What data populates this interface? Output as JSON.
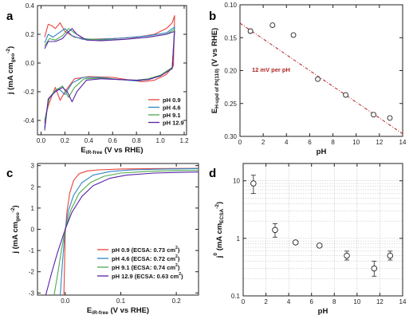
{
  "chart_data": [
    {
      "panel": "a",
      "type": "line",
      "xlabel": {
        "main": "E",
        "sub": "iR-free",
        "rest": " (V vs RHE)"
      },
      "ylabel": {
        "pre": "j (mA cm",
        "sub": "geo",
        "sup": "-2",
        "post": ")"
      },
      "xlim": [
        -0.03,
        1.22
      ],
      "ylim": [
        -0.5,
        0.4
      ],
      "xticks": [
        0.0,
        0.2,
        0.4,
        0.6,
        0.8,
        1.0,
        1.2
      ],
      "xtick_labels": [
        "0.0",
        "0.2",
        "0.4",
        "0.6",
        "0.8",
        "1.0",
        "1.2"
      ],
      "yticks": [
        -0.4,
        -0.2,
        0.0,
        0.2,
        0.4
      ],
      "ytick_labels": [
        "-0.4",
        "-0.2",
        "0.0",
        "0.2",
        "0.4"
      ],
      "legend": {
        "placement": "bottom-right"
      },
      "series": [
        {
          "name": "pH  0.9",
          "color": "#e8443a",
          "anodic": [
            [
              0.03,
              0.18
            ],
            [
              0.06,
              0.27
            ],
            [
              0.09,
              0.26
            ],
            [
              0.12,
              0.24
            ],
            [
              0.16,
              0.28
            ],
            [
              0.2,
              0.22
            ],
            [
              0.28,
              0.18
            ],
            [
              0.4,
              0.165
            ],
            [
              0.6,
              0.17
            ],
            [
              0.8,
              0.18
            ],
            [
              0.95,
              0.2
            ],
            [
              1.05,
              0.24
            ],
            [
              1.1,
              0.28
            ],
            [
              1.12,
              0.33
            ]
          ],
          "cathodic": [
            [
              1.12,
              0.33
            ],
            [
              1.11,
              -0.02
            ],
            [
              1.05,
              -0.08
            ],
            [
              0.95,
              -0.12
            ],
            [
              0.85,
              -0.13
            ],
            [
              0.75,
              -0.12
            ],
            [
              0.6,
              -0.1
            ],
            [
              0.4,
              -0.095
            ],
            [
              0.28,
              -0.11
            ],
            [
              0.2,
              -0.2
            ],
            [
              0.16,
              -0.26
            ],
            [
              0.12,
              -0.17
            ],
            [
              0.09,
              -0.23
            ],
            [
              0.06,
              -0.3
            ],
            [
              0.04,
              -0.36
            ],
            [
              0.03,
              -0.42
            ]
          ]
        },
        {
          "name": "pH  4.6",
          "color": "#2f84c4",
          "anodic": [
            [
              0.03,
              0.14
            ],
            [
              0.06,
              0.2
            ],
            [
              0.1,
              0.18
            ],
            [
              0.15,
              0.21
            ],
            [
              0.2,
              0.24
            ],
            [
              0.26,
              0.19
            ],
            [
              0.35,
              0.165
            ],
            [
              0.5,
              0.165
            ],
            [
              0.7,
              0.175
            ],
            [
              0.9,
              0.19
            ],
            [
              1.05,
              0.21
            ],
            [
              1.12,
              0.25
            ]
          ],
          "cathodic": [
            [
              1.12,
              0.25
            ],
            [
              1.1,
              -0.03
            ],
            [
              1.0,
              -0.09
            ],
            [
              0.9,
              -0.115
            ],
            [
              0.8,
              -0.125
            ],
            [
              0.65,
              -0.115
            ],
            [
              0.5,
              -0.1
            ],
            [
              0.35,
              -0.1
            ],
            [
              0.26,
              -0.14
            ],
            [
              0.2,
              -0.22
            ],
            [
              0.15,
              -0.18
            ],
            [
              0.1,
              -0.21
            ],
            [
              0.06,
              -0.26
            ],
            [
              0.03,
              -0.45
            ]
          ]
        },
        {
          "name": "pH  9.1",
          "color": "#4dab4a",
          "anodic": [
            [
              0.03,
              0.12
            ],
            [
              0.07,
              0.17
            ],
            [
              0.12,
              0.16
            ],
            [
              0.18,
              0.19
            ],
            [
              0.23,
              0.24
            ],
            [
              0.28,
              0.21
            ],
            [
              0.36,
              0.17
            ],
            [
              0.5,
              0.16
            ],
            [
              0.7,
              0.165
            ],
            [
              0.9,
              0.18
            ],
            [
              1.05,
              0.2
            ],
            [
              1.12,
              0.235
            ]
          ],
          "cathodic": [
            [
              1.12,
              0.235
            ],
            [
              1.1,
              -0.03
            ],
            [
              1.0,
              -0.085
            ],
            [
              0.9,
              -0.11
            ],
            [
              0.8,
              -0.12
            ],
            [
              0.65,
              -0.115
            ],
            [
              0.5,
              -0.105
            ],
            [
              0.36,
              -0.11
            ],
            [
              0.28,
              -0.17
            ],
            [
              0.23,
              -0.24
            ],
            [
              0.18,
              -0.16
            ],
            [
              0.12,
              -0.19
            ],
            [
              0.07,
              -0.24
            ],
            [
              0.03,
              -0.4
            ]
          ]
        },
        {
          "name": "pH 12.9",
          "color": "#5a1fa8",
          "anodic": [
            [
              0.03,
              0.1
            ],
            [
              0.06,
              0.15
            ],
            [
              0.12,
              0.15
            ],
            [
              0.18,
              0.17
            ],
            [
              0.22,
              0.21
            ],
            [
              0.26,
              0.24
            ],
            [
              0.3,
              0.2
            ],
            [
              0.38,
              0.16
            ],
            [
              0.5,
              0.155
            ],
            [
              0.7,
              0.165
            ],
            [
              0.9,
              0.18
            ],
            [
              1.05,
              0.2
            ],
            [
              1.12,
              0.22
            ]
          ],
          "cathodic": [
            [
              1.12,
              0.22
            ],
            [
              1.1,
              -0.04
            ],
            [
              1.0,
              -0.09
            ],
            [
              0.9,
              -0.115
            ],
            [
              0.8,
              -0.12
            ],
            [
              0.65,
              -0.115
            ],
            [
              0.5,
              -0.11
            ],
            [
              0.38,
              -0.12
            ],
            [
              0.3,
              -0.2
            ],
            [
              0.26,
              -0.27
            ],
            [
              0.22,
              -0.2
            ],
            [
              0.18,
              -0.17
            ],
            [
              0.12,
              -0.2
            ],
            [
              0.06,
              -0.25
            ],
            [
              0.03,
              -0.47
            ]
          ]
        }
      ]
    },
    {
      "panel": "b",
      "type": "scatter",
      "xlabel": "pH",
      "ylabel": {
        "pre": "E",
        "sub": "H-upd of Pt(110)",
        "post": " (V vs RHE)"
      },
      "xlim": [
        0,
        14
      ],
      "ylim": [
        0.3,
        0.1
      ],
      "y_inverted": true,
      "xticks": [
        0,
        2,
        4,
        6,
        8,
        10,
        12,
        14
      ],
      "xtick_labels": [
        "0",
        "2",
        "4",
        "6",
        "8",
        "10",
        "12",
        "14"
      ],
      "yticks": [
        0.1,
        0.15,
        0.2,
        0.25,
        0.3
      ],
      "ytick_labels": [
        "0.10",
        "0.15",
        "0.20",
        "0.25",
        "0.30"
      ],
      "x": [
        0.9,
        2.8,
        4.6,
        6.7,
        9.1,
        11.5,
        12.9
      ],
      "y": [
        0.14,
        0.131,
        0.146,
        0.213,
        0.237,
        0.267,
        0.272
      ],
      "yerr": [
        0.002,
        0.002,
        0.002,
        0.002,
        0.004,
        0.003,
        0.002
      ],
      "fit": {
        "x": [
          0,
          14
        ],
        "y": [
          0.128,
          0.296
        ],
        "color": "#b22222",
        "label": "12 mV per pH"
      }
    },
    {
      "panel": "c",
      "type": "line",
      "xlabel": {
        "main": "E",
        "sub": "iR-free",
        "rest": " (V vs RHE)"
      },
      "ylabel": {
        "pre": "j (mA cm",
        "sub": "geo",
        "sup": "-2",
        "post": ")"
      },
      "xlim": [
        -0.05,
        0.24
      ],
      "ylim": [
        -3.1,
        3.1
      ],
      "xticks": [
        0.0,
        0.1,
        0.2
      ],
      "xtick_labels": [
        "0.0",
        "0.1",
        "0.2"
      ],
      "yticks": [
        -3,
        -2,
        -1,
        0,
        1,
        2,
        3
      ],
      "ytick_labels": [
        "-3",
        "-2",
        "-1",
        "0",
        "1",
        "2",
        "3"
      ],
      "legend": {
        "placement": "bottom-right"
      },
      "series": [
        {
          "name": "pH  0.9 (ECSA: 0.73 cm",
          "sup": "2",
          "close": ")",
          "color": "#e8443a",
          "points": [
            [
              -0.0025,
              -3.1
            ],
            [
              -0.001,
              -1.5
            ],
            [
              0.0,
              -0.2
            ],
            [
              0.003,
              0.8
            ],
            [
              0.008,
              1.7
            ],
            [
              0.015,
              2.3
            ],
            [
              0.025,
              2.62
            ],
            [
              0.04,
              2.75
            ],
            [
              0.06,
              2.8
            ],
            [
              0.1,
              2.84
            ],
            [
              0.16,
              2.86
            ],
            [
              0.24,
              2.87
            ]
          ]
        },
        {
          "name": "pH  4.6 (ECSA: 0.72 cm",
          "sup": "2",
          "close": ")",
          "color": "#2f84c4",
          "points": [
            [
              -0.009,
              -3.1
            ],
            [
              -0.005,
              -1.6
            ],
            [
              -0.002,
              -0.6
            ],
            [
              0.0,
              0.0
            ],
            [
              0.006,
              0.9
            ],
            [
              0.015,
              1.6
            ],
            [
              0.03,
              2.2
            ],
            [
              0.05,
              2.55
            ],
            [
              0.08,
              2.72
            ],
            [
              0.12,
              2.8
            ],
            [
              0.18,
              2.84
            ],
            [
              0.24,
              2.86
            ]
          ]
        },
        {
          "name": "pH  9.1 (ECSA: 0.74 cm",
          "sup": "2",
          "close": ")",
          "color": "#4dab4a",
          "points": [
            [
              -0.02,
              -3.1
            ],
            [
              -0.013,
              -2.0
            ],
            [
              -0.007,
              -1.0
            ],
            [
              0.0,
              0.0
            ],
            [
              0.01,
              0.9
            ],
            [
              0.025,
              1.7
            ],
            [
              0.045,
              2.2
            ],
            [
              0.07,
              2.5
            ],
            [
              0.1,
              2.65
            ],
            [
              0.15,
              2.73
            ],
            [
              0.2,
              2.77
            ],
            [
              0.24,
              2.78
            ]
          ]
        },
        {
          "name": "pH 12.9 (ECSA: 0.63 cm",
          "sup": "2",
          "close": ")",
          "color": "#5a1fa8",
          "points": [
            [
              -0.035,
              -3.1
            ],
            [
              -0.025,
              -2.1
            ],
            [
              -0.014,
              -1.1
            ],
            [
              0.0,
              0.0
            ],
            [
              0.012,
              0.8
            ],
            [
              0.03,
              1.55
            ],
            [
              0.05,
              2.05
            ],
            [
              0.08,
              2.4
            ],
            [
              0.11,
              2.55
            ],
            [
              0.16,
              2.65
            ],
            [
              0.2,
              2.68
            ],
            [
              0.24,
              2.7
            ]
          ]
        }
      ]
    },
    {
      "panel": "d",
      "type": "scatter",
      "xlabel": "pH",
      "ylabel": {
        "pre": "j",
        "sup": "0",
        "mid": " (mA cm",
        "sub": "ECSA",
        "sup2": "-2",
        "post": ")"
      },
      "xlim": [
        0,
        14
      ],
      "ylim": [
        0.1,
        20
      ],
      "yscale": "log",
      "xticks": [
        0,
        2,
        4,
        6,
        8,
        10,
        12,
        14
      ],
      "xtick_labels": [
        "0",
        "2",
        "4",
        "6",
        "8",
        "10",
        "12",
        "14"
      ],
      "yticks": [
        0.1,
        1,
        10
      ],
      "ytick_labels": [
        "0.1",
        "1",
        "10"
      ],
      "grid": true,
      "x": [
        0.9,
        2.8,
        4.6,
        6.7,
        9.1,
        11.5,
        12.9
      ],
      "y": [
        9.0,
        1.4,
        0.85,
        0.75,
        0.5,
        0.3,
        0.5
      ],
      "ylo": [
        6.0,
        1.05,
        0.8,
        0.7,
        0.42,
        0.22,
        0.42
      ],
      "yhi": [
        12.5,
        1.8,
        0.9,
        0.8,
        0.6,
        0.4,
        0.6
      ]
    }
  ]
}
